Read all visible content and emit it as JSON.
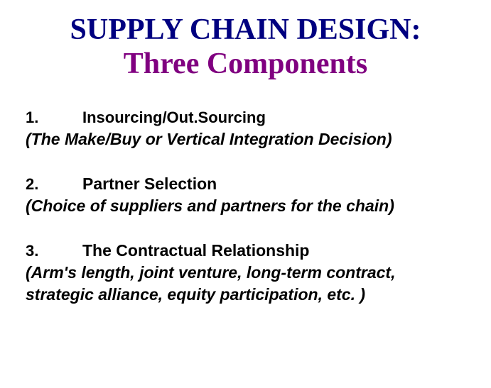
{
  "title": {
    "line1": "SUPPLY CHAIN DESIGN:",
    "line2": "Three Components",
    "line1_color": "#000080",
    "line2_color": "#800080",
    "font_family": "Times New Roman",
    "font_size": 42,
    "font_weight": "bold"
  },
  "items": [
    {
      "number": "1.",
      "heading": "Insourcing/Out.Sourcing",
      "heading_font": "Verdana",
      "description": "(The Make/Buy or Vertical Integration Decision)"
    },
    {
      "number": "2.",
      "heading": "Partner Selection",
      "heading_font": "Arial",
      "description": "(Choice of suppliers and partners for the chain)"
    },
    {
      "number": "3.",
      "heading": "The Contractual Relationship",
      "heading_font": "Arial",
      "description": "(Arm's length, joint venture, long-term contract, strategic alliance, equity participation, etc. )"
    }
  ],
  "body_text_color": "#000000",
  "background_color": "#ffffff",
  "desc_font_size": 23,
  "desc_font_style": "italic",
  "desc_font_weight": "bold"
}
